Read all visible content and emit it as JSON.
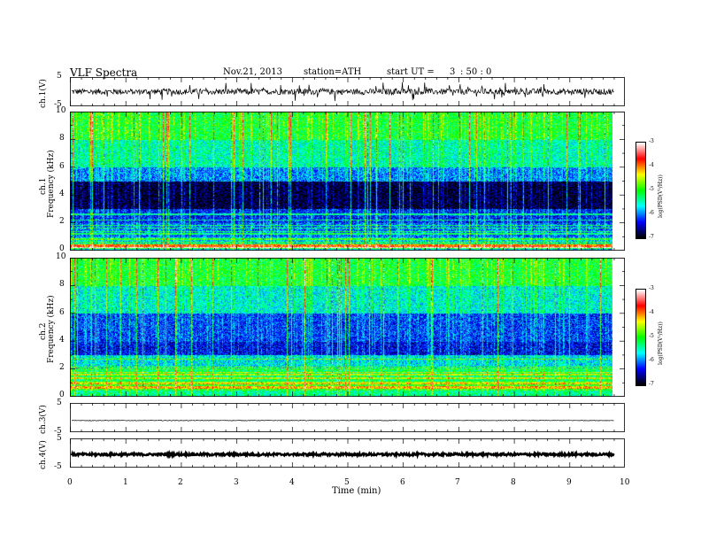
{
  "header": {
    "title": "VLF Spectra",
    "date": "Nov.21, 2013",
    "station": "station=ATH",
    "start_label": "start UT =",
    "start_hour": "3",
    "start_rest": ": 50 : 0"
  },
  "xaxis": {
    "label": "Time (min)",
    "ticks": [
      "0",
      "1",
      "2",
      "3",
      "4",
      "5",
      "6",
      "7",
      "8",
      "9",
      "10"
    ]
  },
  "panels": {
    "ch1_wave": {
      "ylabel": "ch.1(V)",
      "ticks": [
        "5",
        "-5"
      ]
    },
    "ch1_spec": {
      "ylabel_line1": "ch.1",
      "ylabel_line2": "Frequency (kHz)",
      "ticks": [
        "10",
        "8",
        "6",
        "4",
        "2",
        "0"
      ]
    },
    "ch2_spec": {
      "ylabel_line1": "ch.2",
      "ylabel_line2": "Frequency (kHz)",
      "ticks": [
        "10",
        "8",
        "6",
        "4",
        "2",
        "0"
      ]
    },
    "ch3_wave": {
      "ylabel": "ch.3(V)",
      "ticks": [
        "5",
        "-5"
      ]
    },
    "ch4_wave": {
      "ylabel": "ch.4(V)",
      "ticks": [
        "5",
        "-5"
      ]
    }
  },
  "colorbar": {
    "label": "log(PSD(V²/Hz))",
    "ticks": [
      "-3",
      "-4",
      "-5",
      "-6",
      "-7"
    ],
    "colormap": [
      "#ffffff",
      "#ff0000",
      "#ffff00",
      "#00ff00",
      "#00ffff",
      "#0000ff",
      "#000000"
    ]
  },
  "chart_data": [
    {
      "type": "line",
      "name": "ch.1 waveform",
      "ylabel": "ch.1(V)",
      "xlabel": "Time (min)",
      "xlim": [
        0,
        10
      ],
      "ylim": [
        -5,
        5
      ],
      "x_data_end": 9.8,
      "baseline_v": 0,
      "noise_amp_v": 1,
      "spike_amp_v": 2.5
    },
    {
      "type": "heatmap",
      "name": "ch.1 spectrogram",
      "ylabel": "Frequency (kHz)",
      "xlabel": "Time (min)",
      "xlim": [
        0,
        10
      ],
      "ylim": [
        0,
        10
      ],
      "x_data_end": 9.8,
      "zlabel": "log(PSD(V²/Hz))",
      "zlim": [
        -7,
        -3
      ],
      "bands": [
        {
          "f_from": 8,
          "f_to": 10,
          "log_psd": -5.1
        },
        {
          "f_from": 6,
          "f_to": 8,
          "log_psd": -5.5
        },
        {
          "f_from": 5,
          "f_to": 6,
          "log_psd": -6.0
        },
        {
          "f_from": 3,
          "f_to": 5,
          "log_psd": -6.9
        },
        {
          "f_from": 2,
          "f_to": 3,
          "log_psd": -6.3
        },
        {
          "f_from": 1,
          "f_to": 2,
          "log_psd": -6.1
        },
        {
          "f_from": 0.5,
          "f_to": 1,
          "log_psd": -5.8
        },
        {
          "f_from": 0.2,
          "f_to": 0.5,
          "log_psd": -3.9
        },
        {
          "f_from": 0,
          "f_to": 0.2,
          "log_psd": -5.8
        }
      ]
    },
    {
      "type": "heatmap",
      "name": "ch.2 spectrogram",
      "ylabel": "Frequency (kHz)",
      "xlabel": "Time (min)",
      "xlim": [
        0,
        10
      ],
      "ylim": [
        0,
        10
      ],
      "x_data_end": 9.8,
      "zlabel": "log(PSD(V²/Hz))",
      "zlim": [
        -7,
        -3
      ],
      "bands": [
        {
          "f_from": 8,
          "f_to": 10,
          "log_psd": -5.1
        },
        {
          "f_from": 6,
          "f_to": 8,
          "log_psd": -5.6
        },
        {
          "f_from": 4,
          "f_to": 6,
          "log_psd": -6.2
        },
        {
          "f_from": 3,
          "f_to": 4,
          "log_psd": -6.4
        },
        {
          "f_from": 2,
          "f_to": 3,
          "log_psd": -5.7
        },
        {
          "f_from": 1,
          "f_to": 2,
          "log_psd": -5.3
        },
        {
          "f_from": 0.5,
          "f_to": 1,
          "log_psd": -5.0
        },
        {
          "f_from": 0,
          "f_to": 0.5,
          "log_psd": -5.4
        }
      ]
    },
    {
      "type": "line",
      "name": "ch.3 waveform",
      "ylabel": "ch.3(V)",
      "xlabel": "Time (min)",
      "xlim": [
        0,
        10
      ],
      "ylim": [
        -5,
        5
      ],
      "x_data_end": 9.8,
      "baseline_v": -1,
      "noise_amp_v": 0.1
    },
    {
      "type": "line",
      "name": "ch.4 waveform",
      "ylabel": "ch.4(V)",
      "xlabel": "Time (min)",
      "xlim": [
        0,
        10
      ],
      "ylim": [
        -5,
        5
      ],
      "x_data_end": 9.8,
      "baseline_v": -0.5,
      "noise_amp_v": 0.4
    }
  ]
}
